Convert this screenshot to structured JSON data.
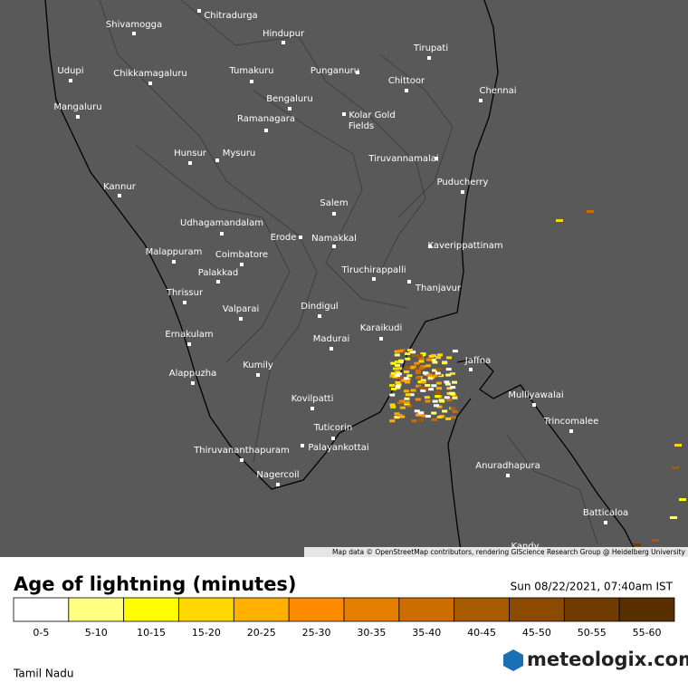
{
  "map": {
    "cities": [
      "Shivamogga",
      "Chitradurga",
      "Hindupur",
      "Tirupati",
      "Udupi",
      "Chikkamagaluru",
      "Tumakuru",
      "Punganuru",
      "Chittoor",
      "Chennai",
      "Mangaluru",
      "Bengaluru",
      "Ramanagara",
      "Kolar Gold",
      "Fields",
      "Hunsur",
      "Mysuru",
      "Tiruvannamalai",
      "Kannur",
      "Puducherry",
      "Salem",
      "Udhagamandalam",
      "Erode",
      "Namakkal",
      "Kaverippattinam",
      "Malappuram",
      "Coimbatore",
      "Tiruchirappalli",
      "Palakkad",
      "Thanjavur",
      "Thrissur",
      "Dindigul",
      "Valparai",
      "Karaikudi",
      "Ernakulam",
      "Madurai",
      "Jaffna",
      "Kumily",
      "Alappuzha",
      "Mulliyawalai",
      "Kovilpatti",
      "Tuticorin",
      "Trincomalee",
      "Thiruvananthapuram",
      "Palayankottai",
      "Anuradhapura",
      "Nagercoil",
      "Batticaloa",
      "Kandy"
    ],
    "attribution": "Map data © OpenStreetMap contributors, rendering GIScience Research Group @ Heidelberg University"
  },
  "legend": {
    "title": "Age of lightning (minutes)",
    "timestamp": "Sun 08/22/2021, 07:40am IST",
    "bins": [
      {
        "label": "0-5",
        "color": "#ffffff"
      },
      {
        "label": "5-10",
        "color": "#ffff80"
      },
      {
        "label": "10-15",
        "color": "#ffff00"
      },
      {
        "label": "15-20",
        "color": "#ffd700"
      },
      {
        "label": "20-25",
        "color": "#ffb000"
      },
      {
        "label": "25-30",
        "color": "#ff8c00"
      },
      {
        "label": "30-35",
        "color": "#e67e00"
      },
      {
        "label": "35-40",
        "color": "#cc6d00"
      },
      {
        "label": "40-45",
        "color": "#a85a00"
      },
      {
        "label": "45-50",
        "color": "#8c4a00"
      },
      {
        "label": "50-55",
        "color": "#703b00"
      },
      {
        "label": "55-60",
        "color": "#583000"
      }
    ]
  },
  "footer": {
    "region": "Tamil Nadu",
    "brand": "meteologix.com"
  }
}
